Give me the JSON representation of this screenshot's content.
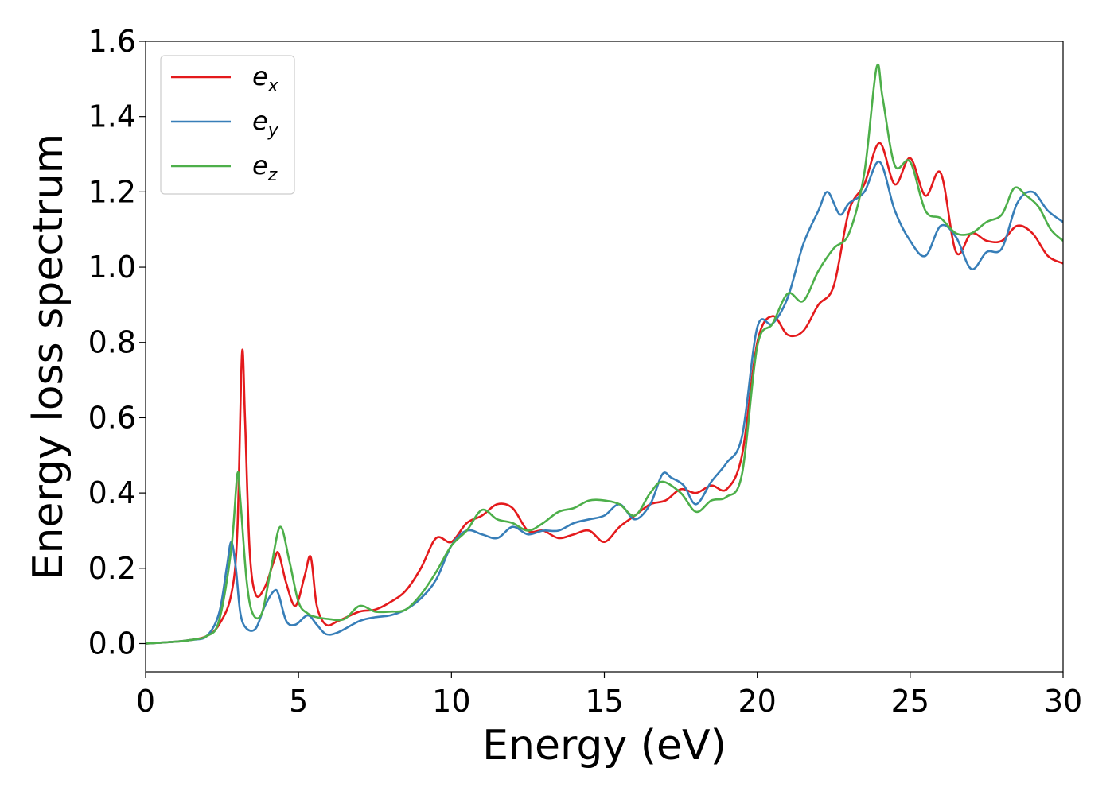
{
  "chart_data": {
    "type": "line",
    "title": "",
    "xlabel": "Energy (eV)",
    "ylabel": "Energy loss spectrum",
    "xlim": [
      0,
      30
    ],
    "ylim": [
      -0.075,
      1.6
    ],
    "xticks": [
      0,
      5,
      10,
      15,
      20,
      25,
      30
    ],
    "yticks": [
      0.0,
      0.2,
      0.4,
      0.6,
      0.8,
      1.0,
      1.2,
      1.4,
      1.6
    ],
    "grid": false,
    "legend_position": "top-left",
    "series": [
      {
        "name": "e_x",
        "label_base": "e",
        "label_sub": "x",
        "color": "#e41a1c",
        "x": [
          0,
          1,
          1.5,
          2,
          2.4,
          2.8,
          3.0,
          3.15,
          3.25,
          3.4,
          3.6,
          3.9,
          4.2,
          4.35,
          4.6,
          4.9,
          5.2,
          5.4,
          5.6,
          5.9,
          6.3,
          7.0,
          7.5,
          8.0,
          8.5,
          9.0,
          9.5,
          10.0,
          10.5,
          11.0,
          11.5,
          12.0,
          12.5,
          13.0,
          13.5,
          14.0,
          14.5,
          15.0,
          15.5,
          16.0,
          16.5,
          17.0,
          17.5,
          18.0,
          18.5,
          19.0,
          19.5,
          20.0,
          20.5,
          21.0,
          21.5,
          22.0,
          22.5,
          23.0,
          23.5,
          24.0,
          24.5,
          25.0,
          25.5,
          26.0,
          26.5,
          27.0,
          27.5,
          28.0,
          28.5,
          29.0,
          29.5,
          30.0
        ],
        "y": [
          0.0,
          0.005,
          0.01,
          0.02,
          0.05,
          0.13,
          0.3,
          0.77,
          0.6,
          0.25,
          0.13,
          0.15,
          0.22,
          0.24,
          0.16,
          0.1,
          0.18,
          0.23,
          0.1,
          0.05,
          0.06,
          0.085,
          0.09,
          0.11,
          0.14,
          0.2,
          0.28,
          0.27,
          0.32,
          0.34,
          0.37,
          0.36,
          0.3,
          0.3,
          0.28,
          0.29,
          0.3,
          0.27,
          0.31,
          0.34,
          0.37,
          0.38,
          0.41,
          0.4,
          0.42,
          0.41,
          0.5,
          0.8,
          0.87,
          0.82,
          0.83,
          0.9,
          0.95,
          1.15,
          1.22,
          1.33,
          1.22,
          1.29,
          1.19,
          1.25,
          1.04,
          1.09,
          1.07,
          1.07,
          1.11,
          1.09,
          1.03,
          1.01
        ]
      },
      {
        "name": "e_y",
        "label_base": "e",
        "label_sub": "y",
        "color": "#377eb8",
        "x": [
          0,
          1,
          1.5,
          2,
          2.4,
          2.65,
          2.8,
          2.95,
          3.1,
          3.3,
          3.6,
          3.9,
          4.2,
          4.35,
          4.6,
          4.9,
          5.3,
          5.6,
          5.9,
          6.3,
          7.0,
          7.5,
          8.0,
          8.5,
          9.0,
          9.5,
          10.0,
          10.5,
          11.0,
          11.5,
          12.0,
          12.5,
          13.0,
          13.5,
          14.0,
          14.5,
          15.0,
          15.5,
          16.0,
          16.5,
          16.9,
          17.2,
          17.6,
          18.0,
          18.5,
          19.0,
          19.5,
          20.0,
          20.5,
          21.0,
          21.5,
          22.0,
          22.3,
          22.7,
          23.0,
          23.5,
          24.0,
          24.5,
          25.0,
          25.5,
          26.0,
          26.5,
          27.0,
          27.5,
          28.0,
          28.5,
          29.0,
          29.5,
          30.0
        ],
        "y": [
          0.0,
          0.005,
          0.01,
          0.02,
          0.08,
          0.2,
          0.27,
          0.2,
          0.08,
          0.04,
          0.04,
          0.1,
          0.14,
          0.13,
          0.06,
          0.05,
          0.075,
          0.05,
          0.025,
          0.03,
          0.06,
          0.07,
          0.075,
          0.09,
          0.12,
          0.17,
          0.26,
          0.3,
          0.29,
          0.28,
          0.31,
          0.29,
          0.3,
          0.3,
          0.32,
          0.33,
          0.34,
          0.37,
          0.33,
          0.37,
          0.45,
          0.44,
          0.42,
          0.37,
          0.43,
          0.48,
          0.55,
          0.84,
          0.85,
          0.92,
          1.06,
          1.15,
          1.2,
          1.14,
          1.17,
          1.2,
          1.28,
          1.15,
          1.07,
          1.03,
          1.11,
          1.08,
          0.995,
          1.04,
          1.05,
          1.17,
          1.2,
          1.15,
          1.12
        ]
      },
      {
        "name": "e_z",
        "label_base": "e",
        "label_sub": "z",
        "color": "#4daf4a",
        "x": [
          0,
          1,
          1.5,
          2,
          2.4,
          2.8,
          3.0,
          3.1,
          3.3,
          3.5,
          3.8,
          4.1,
          4.4,
          4.7,
          5.0,
          5.3,
          5.6,
          6.0,
          6.5,
          7.0,
          7.5,
          8.0,
          8.5,
          9.0,
          9.5,
          10.0,
          10.5,
          11.0,
          11.5,
          12.0,
          12.5,
          13.0,
          13.5,
          14.0,
          14.5,
          15.0,
          15.5,
          16.0,
          16.5,
          16.9,
          17.5,
          18.0,
          18.5,
          19.0,
          19.5,
          20.0,
          20.5,
          21.0,
          21.5,
          22.0,
          22.5,
          23.0,
          23.5,
          23.9,
          24.1,
          24.5,
          25.0,
          25.5,
          26.0,
          26.5,
          27.0,
          27.5,
          28.0,
          28.4,
          28.8,
          29.2,
          29.6,
          30.0
        ],
        "y": [
          0.0,
          0.005,
          0.01,
          0.02,
          0.06,
          0.25,
          0.45,
          0.38,
          0.17,
          0.08,
          0.08,
          0.2,
          0.31,
          0.22,
          0.11,
          0.08,
          0.07,
          0.065,
          0.065,
          0.1,
          0.085,
          0.085,
          0.09,
          0.13,
          0.19,
          0.26,
          0.3,
          0.355,
          0.33,
          0.32,
          0.3,
          0.32,
          0.35,
          0.36,
          0.38,
          0.38,
          0.37,
          0.34,
          0.4,
          0.43,
          0.4,
          0.35,
          0.38,
          0.39,
          0.45,
          0.79,
          0.85,
          0.93,
          0.91,
          0.99,
          1.05,
          1.09,
          1.25,
          1.53,
          1.45,
          1.27,
          1.28,
          1.15,
          1.13,
          1.09,
          1.09,
          1.12,
          1.14,
          1.21,
          1.19,
          1.16,
          1.1,
          1.07
        ]
      }
    ]
  }
}
